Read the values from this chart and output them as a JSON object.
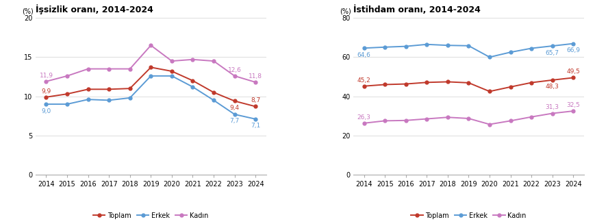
{
  "years": [
    2014,
    2015,
    2016,
    2017,
    2018,
    2019,
    2020,
    2021,
    2022,
    2023,
    2024
  ],
  "issizlik": {
    "title": "İşsizlik oranı, 2014-2024",
    "ylabel": "(%)",
    "ylim": [
      0,
      20
    ],
    "yticks": [
      0,
      5,
      10,
      15,
      20
    ],
    "toplam": [
      9.9,
      10.3,
      10.9,
      10.9,
      11.0,
      13.7,
      13.2,
      12.0,
      10.5,
      9.4,
      8.7
    ],
    "erkek": [
      9.0,
      9.0,
      9.6,
      9.5,
      9.8,
      12.6,
      12.6,
      11.2,
      9.5,
      7.7,
      7.1
    ],
    "kadin": [
      11.9,
      12.6,
      13.5,
      13.5,
      13.5,
      16.5,
      14.5,
      14.7,
      14.5,
      12.6,
      11.8
    ]
  },
  "istihdam": {
    "title": "İstihdam oranı, 2014-2024",
    "ylabel": "(%)",
    "ylim": [
      0,
      80
    ],
    "yticks": [
      0,
      20,
      40,
      60,
      80
    ],
    "toplam": [
      45.2,
      46.0,
      46.3,
      47.1,
      47.4,
      46.9,
      42.5,
      44.8,
      47.0,
      48.3,
      49.5
    ],
    "erkek": [
      64.6,
      65.1,
      65.5,
      66.5,
      66.0,
      65.8,
      60.0,
      62.5,
      64.5,
      65.7,
      66.9
    ],
    "kadin": [
      26.3,
      27.5,
      27.7,
      28.5,
      29.3,
      28.7,
      25.7,
      27.5,
      29.5,
      31.3,
      32.5
    ]
  },
  "issizlik_labels": {
    "2014": {
      "toplam": "9,9",
      "erkek": "9,0",
      "kadin": "11,9"
    },
    "2023": {
      "toplam": "9,4",
      "erkek": "7,7",
      "kadin": "12,6"
    },
    "2024": {
      "toplam": "8,7",
      "erkek": "7,1",
      "kadin": "11,8"
    }
  },
  "istihdam_labels": {
    "2014": {
      "toplam": "45,2",
      "erkek": "64,6",
      "kadin": "26,3"
    },
    "2023": {
      "toplam": "48,3",
      "erkek": "65,7",
      "kadin": "31,3"
    },
    "2024": {
      "toplam": "49,5",
      "erkek": "66,9",
      "kadin": "32,5"
    }
  },
  "color_toplam": "#c0392b",
  "color_erkek": "#5b9bd5",
  "color_kadin": "#c878c0",
  "legend_toplam": "Toplam",
  "legend_erkek": "Erkek",
  "legend_kadin": "Kadın",
  "bg_color": "#ffffff",
  "label_fontsize": 6.5,
  "title_fontsize": 9.0,
  "axis_fontsize": 7.0,
  "legend_fontsize": 7.0
}
